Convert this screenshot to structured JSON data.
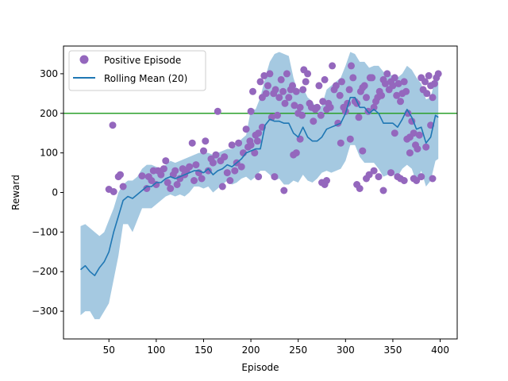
{
  "chart_data": {
    "type": "line",
    "title": "",
    "xlabel": "Episode",
    "ylabel": "Reward",
    "xlim": [
      2,
      418
    ],
    "ylim": [
      -370,
      370
    ],
    "xticks": [
      50,
      100,
      150,
      200,
      250,
      300,
      350,
      400
    ],
    "yticks": [
      -300,
      -200,
      -100,
      0,
      100,
      200,
      300
    ],
    "threshold": {
      "value": 200,
      "color": "#2ca02c"
    },
    "legend": {
      "position": "top-left",
      "entries": [
        {
          "label": "Positive Episode",
          "marker": "circle",
          "color": "#9467bd"
        },
        {
          "label": "Rolling Mean (20)",
          "marker": "line",
          "color": "#1f77b4"
        }
      ]
    },
    "rolling_mean": {
      "name": "Rolling Mean (20)",
      "color": "#1f77b4",
      "band_color": "#1f77b4",
      "x": [
        20,
        25,
        30,
        35,
        40,
        45,
        50,
        55,
        60,
        65,
        70,
        75,
        80,
        85,
        90,
        95,
        100,
        105,
        110,
        115,
        120,
        125,
        130,
        135,
        140,
        145,
        150,
        155,
        160,
        165,
        170,
        175,
        180,
        185,
        190,
        195,
        200,
        205,
        210,
        215,
        220,
        225,
        230,
        235,
        240,
        245,
        250,
        255,
        260,
        265,
        270,
        275,
        280,
        285,
        290,
        295,
        300,
        305,
        310,
        315,
        320,
        325,
        330,
        335,
        340,
        345,
        350,
        355,
        360,
        365,
        370,
        375,
        380,
        385,
        390,
        395,
        398
      ],
      "mean": [
        -195,
        -185,
        -200,
        -210,
        -190,
        -175,
        -150,
        -100,
        -60,
        -20,
        -10,
        -15,
        -5,
        5,
        15,
        15,
        25,
        25,
        35,
        40,
        35,
        40,
        45,
        50,
        55,
        55,
        50,
        60,
        45,
        55,
        60,
        70,
        65,
        75,
        85,
        100,
        105,
        110,
        110,
        170,
        185,
        180,
        180,
        175,
        175,
        150,
        140,
        165,
        140,
        130,
        130,
        140,
        160,
        165,
        170,
        175,
        200,
        240,
        240,
        215,
        215,
        200,
        210,
        200,
        175,
        175,
        175,
        165,
        185,
        210,
        190,
        160,
        165,
        125,
        140,
        195,
        190
      ],
      "upper": [
        -85,
        -80,
        -90,
        -100,
        -110,
        -100,
        -70,
        -40,
        0,
        20,
        30,
        30,
        40,
        60,
        70,
        70,
        65,
        60,
        70,
        80,
        75,
        80,
        85,
        90,
        95,
        100,
        100,
        100,
        95,
        100,
        105,
        110,
        110,
        120,
        135,
        145,
        210,
        210,
        240,
        290,
        330,
        350,
        355,
        350,
        345,
        290,
        250,
        265,
        240,
        230,
        210,
        220,
        260,
        270,
        280,
        290,
        320,
        355,
        350,
        330,
        330,
        315,
        320,
        320,
        305,
        300,
        295,
        290,
        300,
        320,
        310,
        290,
        275,
        235,
        240,
        290,
        300
      ],
      "lower": [
        -310,
        -300,
        -300,
        -320,
        -320,
        -300,
        -280,
        -220,
        -160,
        -80,
        -80,
        -100,
        -70,
        -40,
        -40,
        -40,
        -30,
        -20,
        -10,
        -5,
        -10,
        -5,
        -10,
        0,
        15,
        15,
        10,
        15,
        0,
        10,
        20,
        30,
        20,
        25,
        35,
        40,
        30,
        40,
        55,
        55,
        45,
        30,
        35,
        20,
        20,
        30,
        25,
        45,
        30,
        25,
        35,
        50,
        55,
        50,
        55,
        60,
        80,
        120,
        120,
        90,
        75,
        75,
        75,
        60,
        40,
        45,
        45,
        40,
        60,
        70,
        60,
        25,
        55,
        15,
        30,
        80,
        85
      ]
    },
    "positive_episodes": {
      "name": "Positive Episode",
      "color": "#9467bd",
      "points": [
        [
          50,
          8
        ],
        [
          54,
          170
        ],
        [
          55,
          2
        ],
        [
          60,
          40
        ],
        [
          62,
          45
        ],
        [
          65,
          15
        ],
        [
          85,
          42
        ],
        [
          90,
          10
        ],
        [
          92,
          40
        ],
        [
          95,
          30
        ],
        [
          97,
          55
        ],
        [
          100,
          20
        ],
        [
          102,
          55
        ],
        [
          105,
          45
        ],
        [
          108,
          60
        ],
        [
          110,
          80
        ],
        [
          112,
          25
        ],
        [
          115,
          10
        ],
        [
          118,
          45
        ],
        [
          120,
          55
        ],
        [
          122,
          20
        ],
        [
          125,
          35
        ],
        [
          128,
          60
        ],
        [
          130,
          45
        ],
        [
          132,
          55
        ],
        [
          135,
          65
        ],
        [
          138,
          125
        ],
        [
          140,
          30
        ],
        [
          142,
          70
        ],
        [
          145,
          50
        ],
        [
          148,
          35
        ],
        [
          150,
          105
        ],
        [
          152,
          130
        ],
        [
          155,
          55
        ],
        [
          158,
          85
        ],
        [
          160,
          75
        ],
        [
          163,
          95
        ],
        [
          165,
          205
        ],
        [
          168,
          80
        ],
        [
          170,
          15
        ],
        [
          172,
          90
        ],
        [
          175,
          50
        ],
        [
          178,
          30
        ],
        [
          180,
          120
        ],
        [
          183,
          55
        ],
        [
          185,
          75
        ],
        [
          187,
          125
        ],
        [
          190,
          65
        ],
        [
          192,
          100
        ],
        [
          195,
          160
        ],
        [
          197,
          115
        ],
        [
          199,
          130
        ],
        [
          200,
          205
        ],
        [
          202,
          255
        ],
        [
          204,
          100
        ],
        [
          205,
          145
        ],
        [
          207,
          130
        ],
        [
          208,
          40
        ],
        [
          210,
          280
        ],
        [
          212,
          240
        ],
        [
          214,
          295
        ],
        [
          216,
          250
        ],
        [
          218,
          270
        ],
        [
          220,
          300
        ],
        [
          222,
          190
        ],
        [
          224,
          250
        ],
        [
          226,
          260
        ],
        [
          228,
          195
        ],
        [
          230,
          240
        ],
        [
          232,
          285
        ],
        [
          234,
          255
        ],
        [
          236,
          225
        ],
        [
          238,
          300
        ],
        [
          240,
          240
        ],
        [
          242,
          260
        ],
        [
          244,
          270
        ],
        [
          246,
          220
        ],
        [
          248,
          255
        ],
        [
          250,
          200
        ],
        [
          252,
          215
        ],
        [
          254,
          195
        ],
        [
          255,
          260
        ],
        [
          256,
          310
        ],
        [
          258,
          280
        ],
        [
          260,
          300
        ],
        [
          262,
          225
        ],
        [
          264,
          215
        ],
        [
          266,
          180
        ],
        [
          268,
          210
        ],
        [
          270,
          215
        ],
        [
          272,
          270
        ],
        [
          274,
          195
        ],
        [
          276,
          230
        ],
        [
          278,
          285
        ],
        [
          280,
          210
        ],
        [
          282,
          225
        ],
        [
          284,
          215
        ],
        [
          286,
          320
        ],
        [
          288,
          260
        ],
        [
          290,
          270
        ],
        [
          292,
          175
        ],
        [
          294,
          245
        ],
        [
          296,
          280
        ],
        [
          298,
          215
        ],
        [
          300,
          205
        ],
        [
          302,
          225
        ],
        [
          304,
          260
        ],
        [
          306,
          320
        ],
        [
          308,
          290
        ],
        [
          310,
          230
        ],
        [
          312,
          225
        ],
        [
          314,
          190
        ],
        [
          316,
          255
        ],
        [
          318,
          265
        ],
        [
          320,
          270
        ],
        [
          322,
          240
        ],
        [
          324,
          205
        ],
        [
          326,
          290
        ],
        [
          328,
          290
        ],
        [
          330,
          215
        ],
        [
          332,
          230
        ],
        [
          334,
          240
        ],
        [
          336,
          255
        ],
        [
          338,
          245
        ],
        [
          340,
          285
        ],
        [
          342,
          275
        ],
        [
          344,
          300
        ],
        [
          346,
          260
        ],
        [
          348,
          280
        ],
        [
          350,
          270
        ],
        [
          352,
          290
        ],
        [
          354,
          245
        ],
        [
          356,
          275
        ],
        [
          358,
          230
        ],
        [
          360,
          250
        ],
        [
          362,
          280
        ],
        [
          364,
          255
        ],
        [
          366,
          200
        ],
        [
          368,
          140
        ],
        [
          370,
          180
        ],
        [
          372,
          150
        ],
        [
          374,
          120
        ],
        [
          376,
          110
        ],
        [
          378,
          145
        ],
        [
          380,
          290
        ],
        [
          382,
          260
        ],
        [
          384,
          280
        ],
        [
          386,
          250
        ],
        [
          388,
          295
        ],
        [
          390,
          270
        ],
        [
          392,
          240
        ],
        [
          394,
          275
        ],
        [
          396,
          290
        ],
        [
          398,
          300
        ],
        [
          200,
          120
        ],
        [
          208,
          150
        ],
        [
          212,
          165
        ],
        [
          225,
          40
        ],
        [
          235,
          5
        ],
        [
          245,
          95
        ],
        [
          248,
          100
        ],
        [
          252,
          135
        ],
        [
          275,
          25
        ],
        [
          278,
          20
        ],
        [
          280,
          30
        ],
        [
          295,
          125
        ],
        [
          305,
          135
        ],
        [
          312,
          20
        ],
        [
          315,
          10
        ],
        [
          318,
          105
        ],
        [
          322,
          35
        ],
        [
          325,
          45
        ],
        [
          330,
          55
        ],
        [
          335,
          40
        ],
        [
          340,
          5
        ],
        [
          348,
          50
        ],
        [
          352,
          150
        ],
        [
          355,
          40
        ],
        [
          358,
          35
        ],
        [
          362,
          30
        ],
        [
          365,
          135
        ],
        [
          368,
          100
        ],
        [
          372,
          35
        ],
        [
          375,
          30
        ],
        [
          380,
          40
        ],
        [
          385,
          115
        ],
        [
          390,
          170
        ],
        [
          392,
          35
        ]
      ]
    }
  }
}
